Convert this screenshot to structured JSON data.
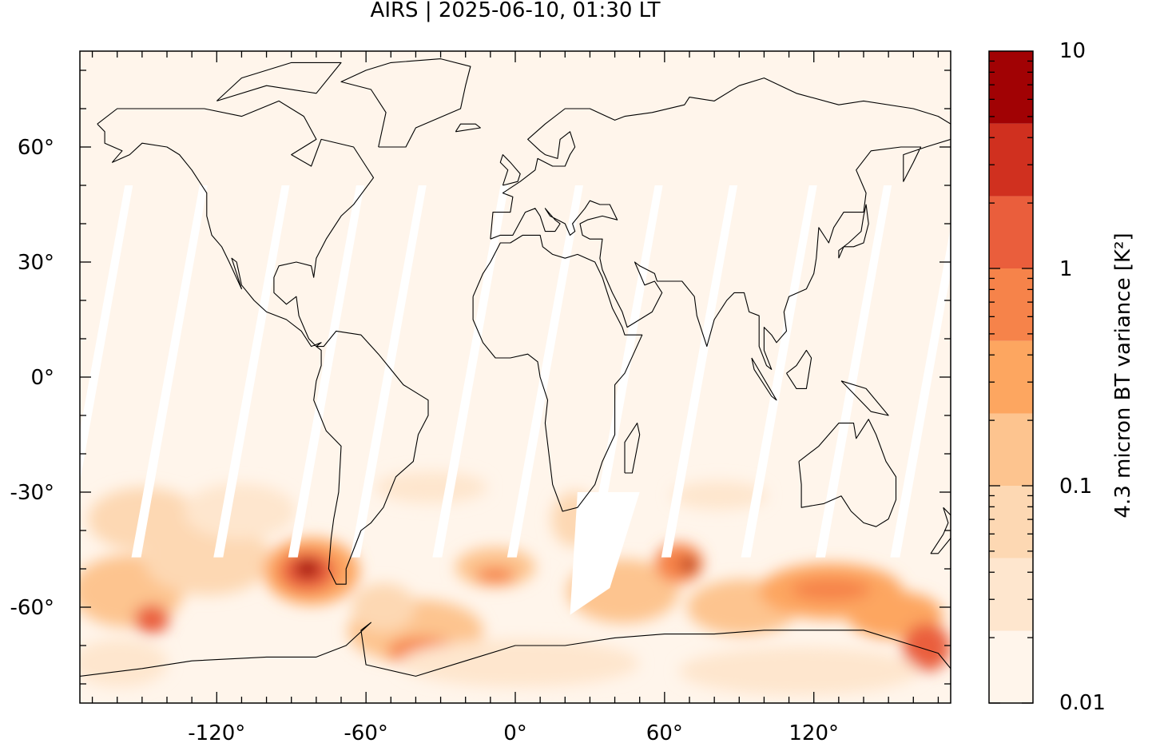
{
  "title": "AIRS | 2025-06-10, 01:30 LT",
  "map": {
    "projection": "equirectangular",
    "lon_range": [
      -175,
      175
    ],
    "lat_range": [
      -85,
      85
    ],
    "x_ticks": [
      {
        "value": -120,
        "label": "-120°"
      },
      {
        "value": -60,
        "label": "-60°"
      },
      {
        "value": 0,
        "label": "0°"
      },
      {
        "value": 60,
        "label": "60°"
      },
      {
        "value": 120,
        "label": "120°"
      }
    ],
    "y_ticks": [
      {
        "value": 60,
        "label": "60°"
      },
      {
        "value": 30,
        "label": "30°"
      },
      {
        "value": 0,
        "label": "0°"
      },
      {
        "value": -30,
        "label": "-30°"
      },
      {
        "value": -60,
        "label": "-60°"
      }
    ],
    "background_color": "#fff5eb",
    "coastline_color": "#000000",
    "gap_color": "#ffffff"
  },
  "colorbar": {
    "label": "4.3 micron BT variance [K²]",
    "scale": "log",
    "range": [
      0.01,
      10
    ],
    "tick_labels": [
      {
        "value": 10,
        "label": "10"
      },
      {
        "value": 1,
        "label": "1"
      },
      {
        "value": 0.1,
        "label": "0.1"
      },
      {
        "value": 0.01,
        "label": "0.01"
      }
    ],
    "bins": [
      {
        "from": 0.01,
        "to": 0.0215,
        "color": "#fff5eb"
      },
      {
        "from": 0.0215,
        "to": 0.0464,
        "color": "#fee6ce"
      },
      {
        "from": 0.0464,
        "to": 0.1,
        "color": "#fdd8b3"
      },
      {
        "from": 0.1,
        "to": 0.215,
        "color": "#fdc48f"
      },
      {
        "from": 0.215,
        "to": 0.464,
        "color": "#fda660"
      },
      {
        "from": 0.464,
        "to": 1,
        "color": "#f6834a"
      },
      {
        "from": 1,
        "to": 2.15,
        "color": "#ea5e3c"
      },
      {
        "from": 2.15,
        "to": 4.64,
        "color": "#d0301f"
      },
      {
        "from": 4.64,
        "to": 10,
        "color": "#a10204"
      }
    ]
  }
}
